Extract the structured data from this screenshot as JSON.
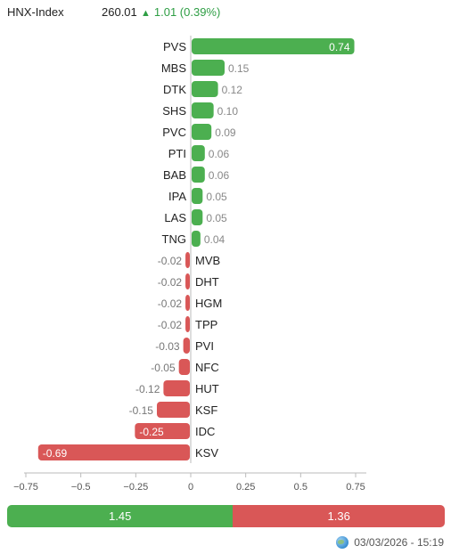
{
  "header": {
    "index_name": "HNX-Index",
    "index_value": "260.01",
    "change_arrow": "▲",
    "change_text": "1.01 (0.39%)",
    "change_color": "#2e9e44"
  },
  "colors": {
    "positive": "#4caf50",
    "negative": "#d95757",
    "axis": "#bbbbbb"
  },
  "chart_data": {
    "type": "bar",
    "orientation": "horizontal",
    "categories": [
      "PVS",
      "MBS",
      "DTK",
      "SHS",
      "PVC",
      "PTI",
      "BAB",
      "IPA",
      "LAS",
      "TNG",
      "MVB",
      "DHT",
      "HGM",
      "TPP",
      "PVI",
      "NFC",
      "HUT",
      "KSF",
      "IDC",
      "KSV"
    ],
    "values": [
      0.74,
      0.15,
      0.12,
      0.1,
      0.09,
      0.06,
      0.06,
      0.05,
      0.05,
      0.04,
      -0.02,
      -0.02,
      -0.02,
      -0.02,
      -0.03,
      -0.05,
      -0.12,
      -0.15,
      -0.25,
      -0.69
    ],
    "labels": [
      "0.74",
      "0.15",
      "0.12",
      "0.10",
      "0.09",
      "0.06",
      "0.06",
      "0.05",
      "0.05",
      "0.04",
      "-0.02",
      "-0.02",
      "-0.02",
      "-0.02",
      "-0.03",
      "-0.05",
      "-0.12",
      "-0.15",
      "-0.25",
      "-0.69"
    ],
    "xlim": [
      -0.75,
      0.75
    ],
    "xticks": [
      -0.75,
      -0.5,
      -0.25,
      0,
      0.25,
      0.5,
      0.75
    ],
    "xtick_labels": [
      "−0.75",
      "−0.5",
      "−0.25",
      "0",
      "0.25",
      "0.5",
      "0.75"
    ],
    "title": "",
    "xlabel": "",
    "ylabel": "",
    "grid": false,
    "legend": "none"
  },
  "summary": {
    "positive_value": 1.45,
    "negative_value": 1.36,
    "positive_label": "1.45",
    "negative_label": "1.36"
  },
  "footer": {
    "timestamp": "03/03/2026 - 15:19",
    "icon": "globe-icon"
  }
}
